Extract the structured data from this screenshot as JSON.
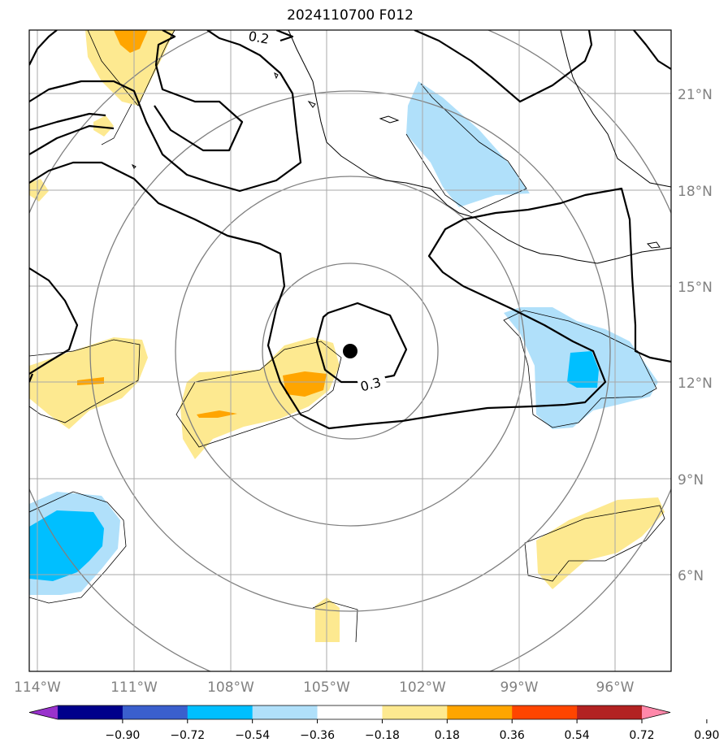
{
  "title": "2024110700 F012",
  "map": {
    "lat_ticks": [
      "21°N",
      "18°N",
      "15°N",
      "12°N",
      "9°N",
      "6°N"
    ],
    "lon_ticks": [
      "114°W",
      "111°W",
      "108°W",
      "105°W",
      "102°W",
      "99°W",
      "96°W"
    ],
    "contour_labels": [
      "0.2",
      "0.3"
    ],
    "storm_center": {
      "lon": -104.3,
      "lat": 12.9
    }
  },
  "colorbar": {
    "tick_labels": [
      "−0.90",
      "−0.72",
      "−0.54",
      "−0.36",
      "−0.18",
      "0.18",
      "0.36",
      "0.54",
      "0.72",
      "0.90"
    ],
    "colors": [
      "#9932cc",
      "#00008b",
      "#3a5fcd",
      "#00bfff",
      "#b0e0fa",
      "#ffffff",
      "#fde990",
      "#ffa500",
      "#ff4500",
      "#b22222",
      "#ff88aa"
    ]
  }
}
